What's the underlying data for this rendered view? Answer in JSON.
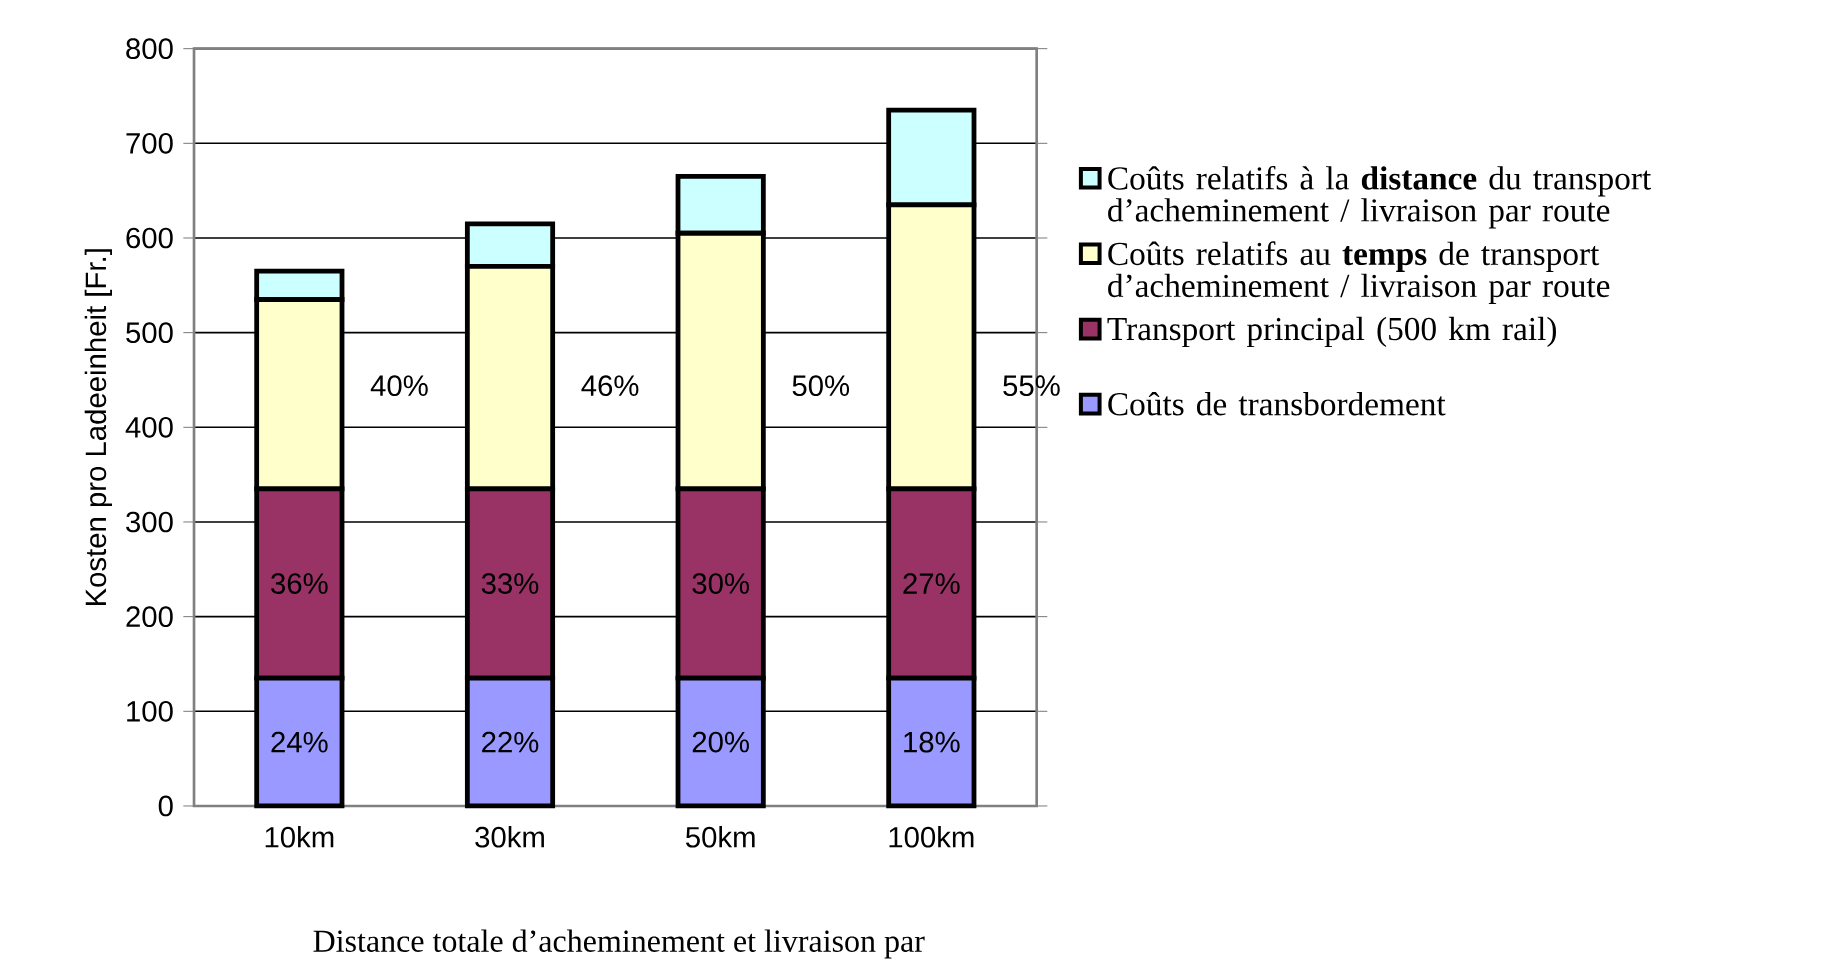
{
  "chart_data": {
    "type": "bar",
    "stacked": true,
    "ylabel": "Kosten pro Ladeeinheit [Fr.]",
    "xlabel": "Distance totale d’acheminement et livraison par",
    "categories": [
      "10km",
      "30km",
      "50km",
      "100km"
    ],
    "series": [
      {
        "name": "Coûts de transbordement",
        "color": "#9999ff",
        "values": [
          135,
          135,
          135,
          135
        ]
      },
      {
        "name": "Transport principal (500 km rail)",
        "color": "#993366",
        "values": [
          200,
          200,
          200,
          200
        ]
      },
      {
        "name": "Coûts relatifs au **temps** de transport d’acheminement / livraison par route",
        "color": "#ffffcc",
        "values": [
          200,
          235,
          270,
          300
        ]
      },
      {
        "name": "Coûts relatifs à la **distance** du transport d’acheminement / livraison par route",
        "color": "#ccffff",
        "values": [
          30,
          45,
          60,
          100
        ]
      }
    ],
    "annotations": [
      "40%",
      "46%",
      "50%",
      "55%",
      "36%",
      "33%",
      "30%",
      "27%",
      "24%",
      "22%",
      "20%",
      "18%"
    ],
    "ylim": [
      0,
      800
    ],
    "yticks": [
      0,
      100,
      200,
      300,
      400,
      500,
      600,
      700,
      800
    ],
    "grid": "y",
    "legend": "right"
  }
}
